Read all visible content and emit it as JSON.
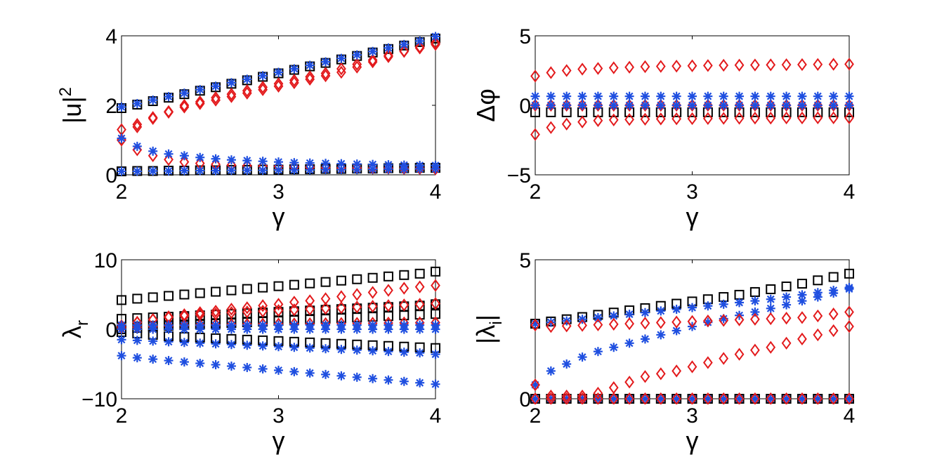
{
  "figure_title": "",
  "chart_data": [
    {
      "type": "scatter",
      "title": "",
      "xlabel": "γ",
      "ylabel": "|u|",
      "ylabel_sup": "2",
      "xlim": [
        2,
        4
      ],
      "ylim": [
        0,
        4
      ],
      "xticks": [
        "2",
        "3",
        "4"
      ],
      "yticks": [
        "0",
        "2",
        "4"
      ],
      "x": [
        2.0,
        2.1,
        2.2,
        2.3,
        2.4,
        2.5,
        2.6,
        2.7,
        2.8,
        2.9,
        3.0,
        3.1,
        3.2,
        3.3,
        3.4,
        3.5,
        3.6,
        3.7,
        3.8,
        3.9,
        4.0
      ],
      "series": [
        {
          "name": "square upper",
          "marker": "square",
          "color": "#000000",
          "values": [
            1.92,
            2.02,
            2.12,
            2.22,
            2.32,
            2.42,
            2.52,
            2.62,
            2.72,
            2.82,
            2.92,
            3.02,
            3.12,
            3.22,
            3.32,
            3.42,
            3.52,
            3.62,
            3.72,
            3.82,
            3.92
          ]
        },
        {
          "name": "square lower",
          "marker": "square",
          "color": "#000000",
          "values": [
            0.1,
            0.11,
            0.11,
            0.12,
            0.12,
            0.13,
            0.13,
            0.14,
            0.14,
            0.15,
            0.15,
            0.16,
            0.16,
            0.17,
            0.17,
            0.18,
            0.18,
            0.19,
            0.19,
            0.2,
            0.2
          ]
        },
        {
          "name": "diamond upper",
          "marker": "diamond",
          "color": "#e31a1c",
          "values": [
            1.3,
            1.45,
            1.65,
            1.8,
            1.95,
            2.05,
            2.15,
            2.25,
            2.35,
            2.45,
            2.55,
            2.65,
            2.75,
            2.85,
            2.95,
            3.1,
            3.25,
            3.4,
            3.55,
            3.65,
            3.75
          ]
        },
        {
          "name": "diamond mid",
          "marker": "diamond",
          "color": "#e31a1c",
          "values": [
            1.0,
            1.38,
            1.62,
            1.82,
            2.0,
            2.1,
            2.22,
            2.32,
            2.42,
            2.52,
            2.62,
            2.72,
            2.82,
            2.92,
            3.05,
            3.18,
            3.3,
            3.44,
            3.56,
            3.68,
            3.8
          ]
        },
        {
          "name": "diamond lower",
          "marker": "diamond",
          "color": "#e31a1c",
          "values": [
            1.0,
            0.72,
            0.55,
            0.44,
            0.37,
            0.33,
            0.3,
            0.28,
            0.26,
            0.25,
            0.24,
            0.23,
            0.22,
            0.21,
            0.2,
            0.2,
            0.19,
            0.19,
            0.18,
            0.18,
            0.17
          ]
        },
        {
          "name": "star upper",
          "marker": "star",
          "color": "#1f4fe0",
          "values": [
            1.95,
            2.05,
            2.15,
            2.25,
            2.35,
            2.45,
            2.55,
            2.65,
            2.75,
            2.85,
            2.95,
            3.05,
            3.15,
            3.25,
            3.35,
            3.45,
            3.55,
            3.65,
            3.75,
            3.85,
            3.98
          ]
        },
        {
          "name": "star mid",
          "marker": "star",
          "color": "#1f4fe0",
          "values": [
            1.05,
            0.82,
            0.68,
            0.6,
            0.55,
            0.5,
            0.46,
            0.43,
            0.41,
            0.39,
            0.37,
            0.35,
            0.34,
            0.33,
            0.32,
            0.31,
            0.3,
            0.29,
            0.28,
            0.27,
            0.27
          ]
        },
        {
          "name": "star lower",
          "marker": "star",
          "color": "#1f4fe0",
          "values": [
            0.1,
            0.1,
            0.11,
            0.11,
            0.12,
            0.12,
            0.12,
            0.13,
            0.13,
            0.13,
            0.14,
            0.14,
            0.14,
            0.15,
            0.15,
            0.15,
            0.16,
            0.16,
            0.16,
            0.17,
            0.17
          ]
        }
      ]
    },
    {
      "type": "scatter",
      "title": "",
      "xlabel": "γ",
      "ylabel": "Δφ",
      "xlim": [
        2,
        4
      ],
      "ylim": [
        -5,
        5
      ],
      "xticks": [
        "2",
        "3",
        "4"
      ],
      "yticks": [
        "−5",
        "0",
        "5"
      ],
      "x": [
        2.0,
        2.1,
        2.2,
        2.3,
        2.4,
        2.5,
        2.6,
        2.7,
        2.8,
        2.9,
        3.0,
        3.1,
        3.2,
        3.3,
        3.4,
        3.5,
        3.6,
        3.7,
        3.8,
        3.9,
        4.0
      ],
      "series": [
        {
          "name": "square",
          "marker": "square",
          "color": "#000000",
          "values": [
            -0.5,
            -0.5,
            -0.5,
            -0.5,
            -0.5,
            -0.5,
            -0.5,
            -0.5,
            -0.5,
            -0.5,
            -0.5,
            -0.5,
            -0.5,
            -0.5,
            -0.5,
            -0.5,
            -0.5,
            -0.5,
            -0.5,
            -0.5,
            -0.5
          ]
        },
        {
          "name": "diamond upper",
          "marker": "diamond",
          "color": "#e31a1c",
          "values": [
            2.1,
            2.35,
            2.5,
            2.6,
            2.65,
            2.7,
            2.74,
            2.78,
            2.8,
            2.82,
            2.84,
            2.86,
            2.88,
            2.89,
            2.9,
            2.91,
            2.92,
            2.93,
            2.94,
            2.95,
            2.96
          ]
        },
        {
          "name": "diamond lower",
          "marker": "diamond",
          "color": "#e31a1c",
          "values": [
            -2.1,
            -1.6,
            -1.35,
            -1.2,
            -1.1,
            -1.05,
            -1.02,
            -1.0,
            -0.98,
            -0.97,
            -0.96,
            -0.95,
            -0.94,
            -0.93,
            -0.92,
            -0.92,
            -0.91,
            -0.91,
            -0.9,
            -0.9,
            -0.9
          ]
        },
        {
          "name": "diamond zero",
          "marker": "diamond",
          "color": "#e31a1c",
          "values": [
            0.0,
            0.0,
            0.0,
            0.0,
            0.0,
            0.0,
            0.0,
            0.0,
            0.0,
            0.0,
            0.0,
            0.0,
            0.0,
            0.0,
            0.0,
            0.0,
            0.0,
            0.0,
            0.0,
            0.0,
            0.0
          ]
        },
        {
          "name": "star upper",
          "marker": "star",
          "color": "#1f4fe0",
          "values": [
            0.65,
            0.65,
            0.65,
            0.65,
            0.65,
            0.65,
            0.65,
            0.65,
            0.65,
            0.65,
            0.65,
            0.65,
            0.65,
            0.65,
            0.65,
            0.65,
            0.65,
            0.65,
            0.65,
            0.65,
            0.65
          ]
        },
        {
          "name": "star zero",
          "marker": "star",
          "color": "#1f4fe0",
          "values": [
            0.0,
            0.0,
            0.0,
            0.0,
            0.0,
            0.0,
            0.0,
            0.0,
            0.0,
            0.0,
            0.0,
            0.0,
            0.0,
            0.0,
            0.0,
            0.0,
            0.0,
            0.0,
            0.0,
            0.0,
            0.0
          ]
        }
      ]
    },
    {
      "type": "scatter",
      "title": "",
      "xlabel": "γ",
      "ylabel": "λ",
      "ylabel_sub": "r",
      "xlim": [
        2,
        4
      ],
      "ylim": [
        -10,
        10
      ],
      "xticks": [
        "2",
        "3",
        "4"
      ],
      "yticks": [
        "−10",
        "0",
        "10"
      ],
      "x": [
        2.0,
        2.1,
        2.2,
        2.3,
        2.4,
        2.5,
        2.6,
        2.7,
        2.8,
        2.9,
        3.0,
        3.1,
        3.2,
        3.3,
        3.4,
        3.5,
        3.6,
        3.7,
        3.8,
        3.9,
        4.0
      ],
      "series": [
        {
          "name": "square top",
          "marker": "square",
          "color": "#000000",
          "values": [
            4.2,
            4.4,
            4.6,
            4.8,
            5.0,
            5.2,
            5.4,
            5.6,
            5.8,
            6.0,
            6.2,
            6.4,
            6.6,
            6.8,
            7.0,
            7.2,
            7.4,
            7.6,
            7.8,
            8.0,
            8.3
          ]
        },
        {
          "name": "square mid",
          "marker": "square",
          "color": "#000000",
          "values": [
            1.5,
            1.6,
            1.7,
            1.8,
            1.9,
            2.0,
            2.1,
            2.2,
            2.3,
            2.4,
            2.5,
            2.6,
            2.7,
            2.8,
            2.9,
            3.0,
            3.1,
            3.2,
            3.3,
            3.4,
            3.6
          ]
        },
        {
          "name": "square low",
          "marker": "square",
          "color": "#000000",
          "values": [
            0.0,
            0.2,
            0.4,
            0.5,
            0.6,
            0.7,
            0.8,
            0.9,
            1.0,
            1.1,
            1.2,
            1.3,
            1.4,
            1.5,
            1.6,
            1.7,
            1.8,
            1.9,
            2.0,
            2.1,
            2.2
          ]
        },
        {
          "name": "square neg",
          "marker": "square",
          "color": "#000000",
          "values": [
            -0.4,
            -0.6,
            -0.8,
            -1.0,
            -1.1,
            -1.2,
            -1.3,
            -1.4,
            -1.5,
            -1.6,
            -1.7,
            -1.8,
            -1.9,
            -2.0,
            -2.1,
            -2.2,
            -2.3,
            -2.4,
            -2.5,
            -2.6,
            -2.7
          ]
        },
        {
          "name": "diamond top",
          "marker": "diamond",
          "color": "#e31a1c",
          "values": [
            0.5,
            1.0,
            1.4,
            1.8,
            2.1,
            2.4,
            2.6,
            2.9,
            3.1,
            3.4,
            3.6,
            3.9,
            4.1,
            4.4,
            4.7,
            5.0,
            5.3,
            5.6,
            5.9,
            6.1,
            6.3
          ]
        },
        {
          "name": "diamond mid",
          "marker": "diamond",
          "color": "#e31a1c",
          "values": [
            0.5,
            1.0,
            1.4,
            1.7,
            1.9,
            2.1,
            2.2,
            2.4,
            2.5,
            2.6,
            2.7,
            2.8,
            2.9,
            3.0,
            3.1,
            3.2,
            3.3,
            3.4,
            3.5,
            3.6,
            3.7
          ]
        },
        {
          "name": "diamond low",
          "marker": "diamond",
          "color": "#e31a1c",
          "values": [
            0.2,
            0.3,
            0.4,
            0.5,
            0.55,
            0.6,
            0.65,
            0.7,
            0.72,
            0.74,
            0.76,
            0.78,
            0.8,
            0.82,
            0.84,
            0.86,
            0.88,
            0.9,
            0.92,
            0.94,
            0.95
          ]
        },
        {
          "name": "star top",
          "marker": "star",
          "color": "#1f4fe0",
          "values": [
            0.6,
            0.6,
            0.6,
            0.6,
            0.6,
            0.6,
            0.6,
            0.6,
            0.6,
            0.6,
            0.6,
            0.6,
            0.6,
            0.6,
            0.6,
            0.6,
            0.6,
            0.6,
            0.6,
            0.6,
            0.6
          ]
        },
        {
          "name": "star zero",
          "marker": "star",
          "color": "#1f4fe0",
          "values": [
            0.0,
            0.0,
            0.0,
            0.0,
            0.0,
            0.0,
            0.0,
            0.0,
            0.0,
            0.0,
            0.0,
            0.0,
            0.0,
            0.0,
            0.0,
            0.0,
            0.0,
            0.0,
            0.0,
            0.0,
            0.0
          ]
        },
        {
          "name": "star mid-neg",
          "marker": "star",
          "color": "#1f4fe0",
          "values": [
            -1.5,
            -1.6,
            -1.7,
            -1.8,
            -1.9,
            -2.0,
            -2.1,
            -2.2,
            -2.3,
            -2.4,
            -2.5,
            -2.6,
            -2.7,
            -2.8,
            -2.9,
            -3.0,
            -3.1,
            -3.2,
            -3.3,
            -3.4,
            -3.6
          ]
        },
        {
          "name": "star bottom",
          "marker": "star",
          "color": "#1f4fe0",
          "values": [
            -3.8,
            -4.1,
            -4.3,
            -4.5,
            -4.7,
            -4.9,
            -5.1,
            -5.3,
            -5.5,
            -5.7,
            -5.9,
            -6.1,
            -6.3,
            -6.5,
            -6.7,
            -6.9,
            -7.1,
            -7.3,
            -7.5,
            -7.7,
            -7.9
          ]
        }
      ]
    },
    {
      "type": "scatter",
      "title": "",
      "xlabel": "γ",
      "ylabel": "|λ",
      "ylabel_sub": "i",
      "ylabel_tail": "|",
      "xlim": [
        2,
        4
      ],
      "ylim": [
        0,
        5
      ],
      "xticks": [
        "2",
        "3",
        "4"
      ],
      "yticks": [
        "0",
        "5"
      ],
      "x": [
        2.0,
        2.1,
        2.2,
        2.3,
        2.4,
        2.5,
        2.6,
        2.7,
        2.8,
        2.9,
        3.0,
        3.1,
        3.2,
        3.3,
        3.4,
        3.5,
        3.6,
        3.7,
        3.8,
        3.9,
        4.0
      ],
      "series": [
        {
          "name": "square top",
          "marker": "square",
          "color": "#000000",
          "values": [
            2.7,
            2.78,
            2.86,
            2.94,
            3.02,
            3.1,
            3.18,
            3.26,
            3.34,
            3.42,
            3.5,
            3.58,
            3.66,
            3.74,
            3.84,
            3.94,
            4.04,
            4.14,
            4.26,
            4.38,
            4.5
          ]
        },
        {
          "name": "square zero",
          "marker": "square",
          "color": "#000000",
          "values": [
            0.0,
            0.0,
            0.0,
            0.0,
            0.0,
            0.0,
            0.0,
            0.0,
            0.0,
            0.0,
            0.0,
            0.0,
            0.0,
            0.0,
            0.0,
            0.0,
            0.0,
            0.0,
            0.0,
            0.0,
            0.0
          ]
        },
        {
          "name": "star upper",
          "marker": "star",
          "color": "#1f4fe0",
          "values": [
            2.7,
            2.75,
            2.8,
            2.86,
            2.92,
            2.98,
            3.04,
            3.1,
            3.16,
            3.22,
            3.28,
            3.34,
            3.4,
            3.46,
            3.52,
            3.58,
            3.66,
            3.74,
            3.82,
            3.9,
            4.0
          ]
        },
        {
          "name": "star rising",
          "marker": "star",
          "color": "#1f4fe0",
          "values": [
            0.5,
            1.0,
            1.25,
            1.5,
            1.7,
            1.85,
            2.0,
            2.15,
            2.3,
            2.45,
            2.6,
            2.75,
            2.88,
            3.0,
            3.12,
            3.25,
            3.38,
            3.52,
            3.66,
            3.8,
            3.95
          ]
        },
        {
          "name": "star zero",
          "marker": "star",
          "color": "#1f4fe0",
          "values": [
            0.0,
            0.0,
            0.0,
            0.0,
            0.0,
            0.0,
            0.0,
            0.0,
            0.0,
            0.0,
            0.0,
            0.0,
            0.0,
            0.0,
            0.0,
            0.0,
            0.0,
            0.0,
            0.0,
            0.0,
            0.0
          ]
        },
        {
          "name": "diamond upper",
          "marker": "diamond",
          "color": "#e31a1c",
          "values": [
            2.65,
            2.6,
            2.62,
            2.64,
            2.66,
            2.68,
            2.7,
            2.72,
            2.74,
            2.76,
            2.78,
            2.8,
            2.82,
            2.84,
            2.86,
            2.88,
            2.9,
            2.92,
            2.98,
            3.05,
            3.12
          ]
        },
        {
          "name": "diamond rising",
          "marker": "diamond",
          "color": "#e31a1c",
          "values": [
            0.5,
            0.1,
            0.1,
            0.1,
            0.2,
            0.4,
            0.6,
            0.8,
            0.9,
            1.0,
            1.15,
            1.3,
            1.45,
            1.6,
            1.75,
            1.85,
            2.0,
            2.15,
            2.3,
            2.45,
            2.6
          ]
        },
        {
          "name": "diamond zero",
          "marker": "diamond",
          "color": "#e31a1c",
          "values": [
            0.0,
            0.0,
            0.0,
            0.0,
            0.0,
            0.0,
            0.0,
            0.0,
            0.0,
            0.0,
            0.0,
            0.0,
            0.0,
            0.0,
            0.0,
            0.0,
            0.0,
            0.0,
            0.0,
            0.0,
            0.0
          ]
        }
      ]
    }
  ]
}
